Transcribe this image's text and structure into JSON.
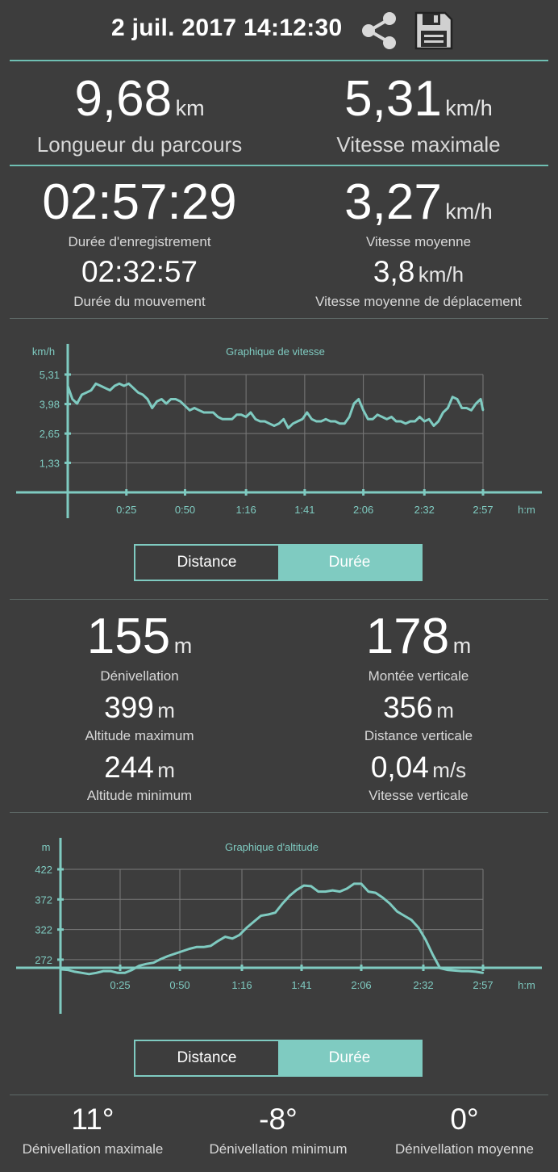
{
  "header": {
    "title": "2 juil. 2017 14:12:30",
    "share_icon": "share-icon",
    "save_icon": "save-icon"
  },
  "colors": {
    "accent": "#7fcbc1",
    "background": "#3d3d3d",
    "grid": "#7a7a7a"
  },
  "summary": {
    "distance": {
      "value": "9,68",
      "unit": "km",
      "label": "Longueur du parcours"
    },
    "max_speed": {
      "value": "5,31",
      "unit": "km/h",
      "label": "Vitesse maximale"
    },
    "rec_duration": {
      "value": "02:57:29",
      "label": "Durée d'enregistrement"
    },
    "avg_speed": {
      "value": "3,27",
      "unit": "km/h",
      "label": "Vitesse moyenne"
    },
    "move_duration": {
      "value": "02:32:57",
      "label": "Durée du mouvement"
    },
    "avg_move_speed": {
      "value": "3,8",
      "unit": "km/h",
      "label": "Vitesse moyenne de déplacement"
    }
  },
  "speed_chart_toggle": {
    "left": "Distance",
    "right": "Durée",
    "selected": "Durée"
  },
  "altitude": {
    "elevation": {
      "value": "155",
      "unit": "m",
      "label": "Dénivellation"
    },
    "ascent": {
      "value": "178",
      "unit": "m",
      "label": "Montée verticale"
    },
    "max_alt": {
      "value": "399",
      "unit": "m",
      "label": "Altitude maximum"
    },
    "vert_dist": {
      "value": "356",
      "unit": "m",
      "label": "Distance verticale"
    },
    "min_alt": {
      "value": "244",
      "unit": "m",
      "label": "Altitude minimum"
    },
    "vert_speed": {
      "value": "0,04",
      "unit": "m/s",
      "label": "Vitesse verticale"
    }
  },
  "alt_chart_toggle": {
    "left": "Distance",
    "right": "Durée",
    "selected": "Durée"
  },
  "slope": {
    "max": {
      "value": "11°",
      "label": "Dénivellation maximale"
    },
    "min": {
      "value": "-8°",
      "label": "Dénivellation minimum"
    },
    "avg": {
      "value": "0°",
      "label": "Dénivellation moyenne"
    }
  },
  "chart_data": [
    {
      "type": "line",
      "title": "Graphique de vitesse",
      "ylabel": "km/h",
      "xlabel": "h:m",
      "yticks": [
        "5,31",
        "3,98",
        "2,65",
        "1,33"
      ],
      "ytick_values": [
        5.31,
        3.98,
        2.65,
        1.33
      ],
      "xticks": [
        "0:25",
        "0:50",
        "1:16",
        "1:41",
        "2:06",
        "2:32",
        "2:57"
      ],
      "xtick_values": [
        25,
        50,
        76,
        101,
        126,
        152,
        177
      ],
      "ylim": [
        0,
        5.31
      ],
      "xlim": [
        0,
        177
      ],
      "grid": true,
      "series": [
        {
          "x": [
            0,
            2,
            4,
            6,
            8,
            10,
            12,
            14,
            16,
            18,
            20,
            22,
            24,
            26,
            28,
            30,
            32,
            34,
            36,
            38,
            40,
            42,
            44,
            46,
            48,
            50,
            52,
            54,
            56,
            58,
            60,
            62,
            64,
            66,
            68,
            70,
            72,
            74,
            76,
            78,
            80,
            82,
            84,
            86,
            88,
            90,
            92,
            94,
            96,
            98,
            100,
            102,
            104,
            106,
            108,
            110,
            112,
            114,
            116,
            118,
            120,
            122,
            124,
            126,
            128,
            130,
            132,
            134,
            136,
            138,
            140,
            142,
            144,
            146,
            148,
            150,
            152,
            154,
            156,
            158,
            160,
            162,
            164,
            166,
            168,
            170,
            172,
            174,
            176,
            177
          ],
          "values": [
            4.8,
            4.2,
            4.0,
            4.4,
            4.5,
            4.6,
            4.9,
            4.8,
            4.7,
            4.6,
            4.8,
            4.9,
            4.8,
            4.9,
            4.7,
            4.5,
            4.4,
            4.2,
            3.8,
            4.1,
            4.2,
            4.0,
            4.2,
            4.2,
            4.1,
            3.9,
            3.7,
            3.8,
            3.7,
            3.6,
            3.6,
            3.6,
            3.4,
            3.3,
            3.3,
            3.3,
            3.5,
            3.5,
            3.4,
            3.6,
            3.3,
            3.2,
            3.2,
            3.1,
            3.0,
            3.1,
            3.3,
            2.9,
            3.1,
            3.2,
            3.3,
            3.6,
            3.3,
            3.2,
            3.2,
            3.3,
            3.2,
            3.2,
            3.1,
            3.1,
            3.4,
            4.0,
            4.2,
            3.7,
            3.3,
            3.3,
            3.5,
            3.4,
            3.3,
            3.4,
            3.2,
            3.2,
            3.1,
            3.2,
            3.2,
            3.4,
            3.2,
            3.3,
            3.0,
            3.2,
            3.6,
            3.8,
            4.3,
            4.2,
            3.8,
            3.8,
            3.7,
            4.0,
            4.2,
            3.7
          ]
        }
      ]
    },
    {
      "type": "line",
      "title": "Graphique d'altitude",
      "ylabel": "m",
      "xlabel": "h:m",
      "yticks": [
        "422",
        "372",
        "322",
        "272"
      ],
      "ytick_values": [
        422,
        372,
        322,
        272
      ],
      "xticks": [
        "0:25",
        "0:50",
        "1:16",
        "1:41",
        "2:06",
        "2:32",
        "2:57"
      ],
      "xtick_values": [
        25,
        50,
        76,
        101,
        126,
        152,
        177
      ],
      "ylim": [
        225,
        422
      ],
      "xlim": [
        0,
        177
      ],
      "grid": true,
      "series": [
        {
          "x": [
            0,
            3,
            6,
            9,
            12,
            15,
            18,
            21,
            24,
            27,
            30,
            33,
            36,
            39,
            42,
            45,
            48,
            51,
            54,
            57,
            60,
            63,
            66,
            69,
            72,
            75,
            78,
            81,
            84,
            87,
            90,
            93,
            96,
            99,
            102,
            105,
            108,
            111,
            114,
            117,
            120,
            123,
            126,
            129,
            132,
            135,
            138,
            141,
            144,
            147,
            150,
            153,
            156,
            159,
            162,
            165,
            168,
            171,
            174,
            177
          ],
          "values": [
            256,
            255,
            252,
            250,
            248,
            250,
            253,
            253,
            250,
            250,
            255,
            262,
            265,
            267,
            273,
            278,
            282,
            286,
            290,
            293,
            293,
            295,
            303,
            310,
            307,
            313,
            325,
            335,
            345,
            347,
            350,
            365,
            378,
            388,
            395,
            394,
            385,
            385,
            387,
            385,
            390,
            398,
            398,
            385,
            383,
            375,
            365,
            352,
            345,
            338,
            325,
            305,
            280,
            258,
            255,
            254,
            253,
            253,
            252,
            250
          ]
        }
      ]
    }
  ]
}
